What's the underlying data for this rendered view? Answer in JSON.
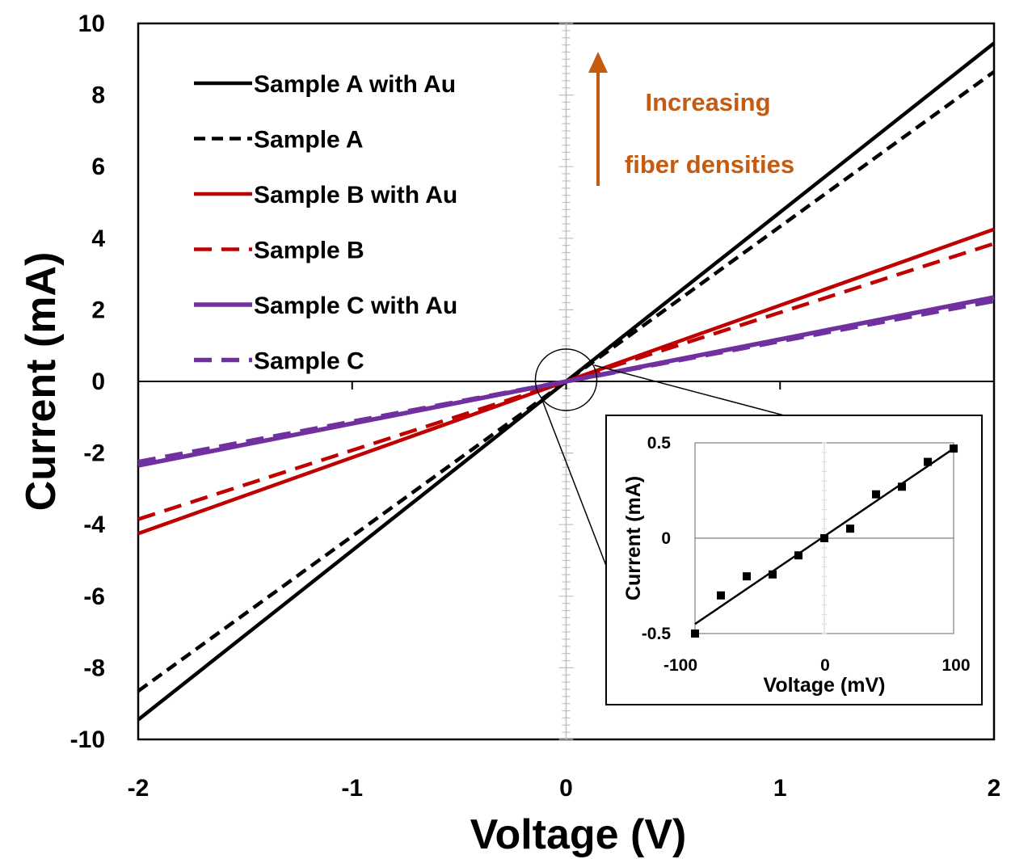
{
  "chart_data": [
    {
      "type": "line",
      "xlabel": "Voltage (V)",
      "ylabel": "Current (mA)",
      "xlim": [
        -2,
        2
      ],
      "ylim": [
        -10,
        10
      ],
      "xticks": [
        "-2",
        "-1",
        "0",
        "1",
        "2"
      ],
      "yticks": [
        "10",
        "8",
        "6",
        "4",
        "2",
        "0",
        "-2",
        "-4",
        "-6",
        "-8",
        "-10"
      ],
      "grid": false,
      "legend_position": "top-left",
      "x": [
        -2,
        2
      ],
      "series": [
        {
          "name": "Sample A with Au",
          "y": [
            -9.45,
            9.45
          ],
          "color": "#000000",
          "dash": "solid"
        },
        {
          "name": "Sample A",
          "y": [
            -8.65,
            8.65
          ],
          "color": "#000000",
          "dash": "dashed"
        },
        {
          "name": "Sample B with Au",
          "y": [
            -4.25,
            4.25
          ],
          "color": "#c00000",
          "dash": "solid"
        },
        {
          "name": "Sample B",
          "y": [
            -3.85,
            3.85
          ],
          "color": "#c00000",
          "dash": "dashed"
        },
        {
          "name": "Sample C with Au",
          "y": [
            -2.35,
            2.35
          ],
          "color": "#7030a0",
          "dash": "solid"
        },
        {
          "name": "Sample C",
          "y": [
            -2.25,
            2.25
          ],
          "color": "#7030a0",
          "dash": "dashed"
        }
      ],
      "annotation": {
        "lines": [
          "Increasing",
          "fiber densities"
        ],
        "color": "#c55a11",
        "arrow": "up"
      }
    },
    {
      "type": "scatter",
      "xlabel": "Voltage (mV)",
      "ylabel": "Current (mA)",
      "xlim": [
        -100,
        100
      ],
      "ylim": [
        -0.5,
        0.5
      ],
      "xticks": [
        "-100",
        "0",
        "100"
      ],
      "yticks": [
        "0.5",
        "0",
        "-0.5"
      ],
      "points": [
        {
          "x": -100,
          "y": -0.5
        },
        {
          "x": -80,
          "y": -0.3
        },
        {
          "x": -60,
          "y": -0.2
        },
        {
          "x": -40,
          "y": -0.19
        },
        {
          "x": -20,
          "y": -0.09
        },
        {
          "x": 0,
          "y": 0
        },
        {
          "x": 20,
          "y": 0.05
        },
        {
          "x": 40,
          "y": 0.23
        },
        {
          "x": 60,
          "y": 0.27
        },
        {
          "x": 80,
          "y": 0.4
        },
        {
          "x": 100,
          "y": 0.47
        }
      ],
      "fit_line": {
        "x": [
          -100,
          100
        ],
        "y": [
          -0.45,
          0.47
        ]
      }
    }
  ]
}
